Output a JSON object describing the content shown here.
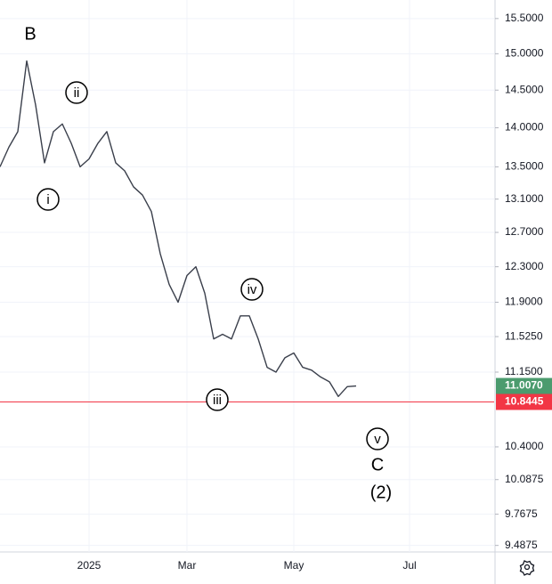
{
  "chart_data": {
    "type": "line",
    "log_scale": true,
    "grid": true,
    "categories": [
      null,
      null,
      null,
      null,
      null,
      null,
      null,
      null,
      null,
      null,
      "2025",
      null,
      null,
      null,
      null,
      null,
      null,
      null,
      null,
      null,
      null,
      "Mar",
      null,
      null,
      null,
      null,
      null,
      null,
      null,
      null,
      null,
      null,
      null,
      "May",
      null,
      null,
      null,
      null,
      null,
      null,
      null,
      null,
      null,
      null,
      null,
      null,
      "Jul",
      null,
      null,
      null,
      null,
      null,
      null,
      null,
      null,
      null
    ],
    "series": [
      {
        "color": "#3a3f4b",
        "values": [
          13.5,
          13.75,
          13.95,
          14.9,
          14.3,
          13.55,
          13.95,
          14.05,
          13.8,
          13.5,
          13.6,
          13.8,
          13.95,
          13.55,
          13.45,
          13.25,
          13.15,
          12.95,
          12.45,
          12.1,
          11.9,
          12.2,
          12.3,
          12.0,
          11.5,
          11.55,
          11.5,
          11.75,
          11.75,
          11.5,
          11.2,
          11.15,
          11.3,
          11.35,
          11.2,
          11.17,
          11.1,
          11.05,
          10.9,
          11.0,
          11.007,
          null,
          null,
          null,
          null,
          null,
          null,
          null,
          null,
          null,
          null,
          null,
          null,
          null,
          null,
          null
        ]
      }
    ],
    "ylim": [
      9.43,
      15.77
    ],
    "yticks": [
      {
        "value": 9.4875,
        "label": "9.4875"
      },
      {
        "value": 9.7675,
        "label": "9.7675"
      },
      {
        "value": 10.0875,
        "label": "10.0875"
      },
      {
        "value": 10.4,
        "label": "10.4000"
      },
      {
        "value": 11.15,
        "label": "11.1500"
      },
      {
        "value": 11.525,
        "label": "11.5250"
      },
      {
        "value": 11.9,
        "label": "11.9000"
      },
      {
        "value": 12.3,
        "label": "12.3000"
      },
      {
        "value": 12.7,
        "label": "12.7000"
      },
      {
        "value": 13.1,
        "label": "13.1000"
      },
      {
        "value": 13.5,
        "label": "13.5000"
      },
      {
        "value": 14.0,
        "label": "14.0000"
      },
      {
        "value": 14.5,
        "label": "14.5000"
      },
      {
        "value": 15.0,
        "label": "15.0000"
      },
      {
        "value": 15.5,
        "label": "15.5000"
      }
    ],
    "last_price": {
      "value": 11.007,
      "label": "11.0070",
      "color": "#4b9b6e"
    },
    "hline": {
      "value": 10.8445,
      "label": "10.8445",
      "color": "#f23645"
    },
    "annotations": [
      "B",
      "i",
      "ii",
      "iii",
      "iv",
      "v",
      "C",
      "(2)"
    ]
  }
}
